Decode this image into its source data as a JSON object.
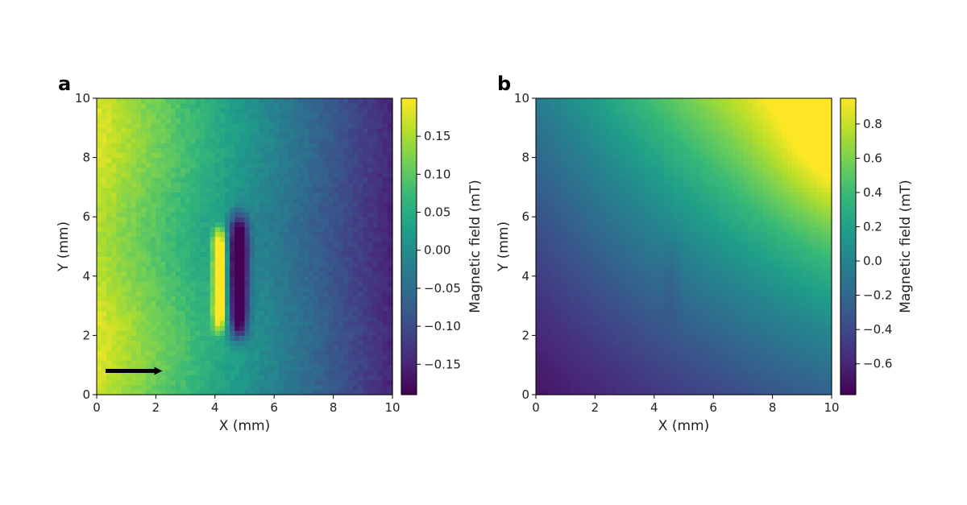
{
  "colors": {
    "viridis": [
      "#440154",
      "#482878",
      "#3e4a89",
      "#31688e",
      "#26828e",
      "#1f9e89",
      "#35b779",
      "#6ece58",
      "#b5de2b",
      "#fde725"
    ],
    "arrow": "#000000"
  },
  "chart_data": [
    {
      "type": "heatmap",
      "panel_label": "a",
      "xlabel": "X (mm)",
      "ylabel": "Y (mm)",
      "xlim": [
        0,
        10
      ],
      "ylim": [
        0,
        10
      ],
      "xticks": [
        0,
        2,
        4,
        6,
        8,
        10
      ],
      "yticks": [
        0,
        2,
        4,
        6,
        8,
        10
      ],
      "colorbar": {
        "label": "Magnetic field (mT)",
        "range": [
          -0.19,
          0.2
        ],
        "ticks": [
          -0.15,
          -0.1,
          -0.05,
          0.0,
          0.05,
          0.1,
          0.15
        ],
        "tick_labels": [
          "−0.15",
          "−0.10",
          "−0.05",
          "0.00",
          "0.05",
          "0.10",
          "0.15"
        ]
      },
      "field": {
        "background": "linear gradient from about 0.17 mT at X=0 to about -0.15 mT at X=10",
        "features": [
          {
            "kind": "positive lobe",
            "x_center": 4.15,
            "y_range": [
              2.0,
              5.8
            ],
            "peak_mT": 0.19
          },
          {
            "kind": "negative lobe",
            "x_center": 4.8,
            "y_range": [
              1.8,
              6.2
            ],
            "peak_mT": -0.19
          }
        ]
      },
      "annotation": {
        "type": "arrow",
        "from": [
          0.3,
          0.8
        ],
        "to": [
          2.3,
          0.8
        ]
      }
    },
    {
      "type": "heatmap",
      "panel_label": "b",
      "xlabel": "X (mm)",
      "ylabel": "Y (mm)",
      "xlim": [
        0,
        10
      ],
      "ylim": [
        0,
        10
      ],
      "xticks": [
        0,
        2,
        4,
        6,
        8,
        10
      ],
      "yticks": [
        0,
        2,
        4,
        6,
        8,
        10
      ],
      "colorbar": {
        "label": "Magnetic field (mT)",
        "range": [
          -0.78,
          0.95
        ],
        "ticks": [
          -0.6,
          -0.4,
          -0.2,
          0.0,
          0.2,
          0.4,
          0.6,
          0.8
        ],
        "tick_labels": [
          "−0.6",
          "−0.4",
          "−0.2",
          "0.0",
          "0.2",
          "0.4",
          "0.6",
          "0.8"
        ]
      },
      "field": {
        "background": "smooth field rising from about -0.7 mT at the bottom to about 0.9 mT at the upper right",
        "features": [
          {
            "kind": "faint negative streak",
            "x_center": 4.5,
            "y_range": [
              2.6,
              5.2
            ],
            "peak_mT": -0.05
          }
        ]
      }
    }
  ]
}
